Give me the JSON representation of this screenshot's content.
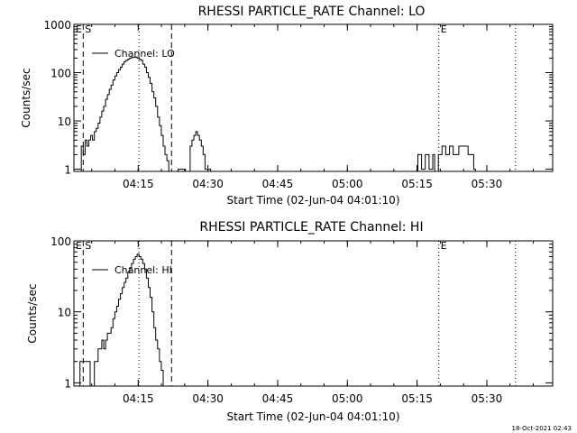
{
  "chart_data": [
    {
      "type": "line",
      "title": "RHESSI PARTICLE_RATE Channel: LO",
      "xlabel": "Start Time (02-Jun-04 04:01:10)",
      "ylabel": "Counts/sec",
      "y_scale": "log",
      "ylim": [
        0.9,
        1000
      ],
      "xlim_minutes": [
        0,
        103
      ],
      "x_ticks": [
        {
          "label": "04:15",
          "minute": 13.83
        },
        {
          "label": "04:30",
          "minute": 28.83
        },
        {
          "label": "04:45",
          "minute": 43.83
        },
        {
          "label": "05:00",
          "minute": 58.83
        },
        {
          "label": "05:15",
          "minute": 73.83
        },
        {
          "label": "05:30",
          "minute": 88.83
        }
      ],
      "y_ticks": [
        {
          "label": "1",
          "value": 1
        },
        {
          "label": "10",
          "value": 10
        },
        {
          "label": "100",
          "value": 100
        },
        {
          "label": "1000",
          "value": 1000
        }
      ],
      "legend": "Channel: LO",
      "markers": [
        {
          "label": "S",
          "minute": 2.0,
          "style": "dashed"
        },
        {
          "label": "",
          "minute": 21.0,
          "style": "dashed"
        },
        {
          "label": "",
          "minute": 14.0,
          "style": "dotted"
        },
        {
          "label": "E",
          "minute": 78.5,
          "style": "dotted"
        },
        {
          "label": "",
          "minute": 95.0,
          "style": "dotted"
        }
      ],
      "corner_label": "E",
      "series": [
        {
          "name": "Channel: LO",
          "segments": [
            {
              "x": [
                1.2,
                1.6,
                2.0,
                2.4,
                2.8,
                3.2,
                3.6,
                4.0,
                4.4,
                4.8,
                5.2,
                5.6,
                6.0,
                6.4,
                6.8,
                7.2,
                7.6,
                8.0,
                8.4,
                8.8,
                9.2,
                9.6,
                10.0,
                10.4,
                10.8,
                11.2,
                11.6,
                12.0,
                12.4,
                12.8,
                13.2,
                13.6,
                14.0,
                14.4,
                14.8,
                15.2,
                15.6,
                16.0,
                16.4,
                16.8,
                17.2,
                17.6,
                18.0,
                18.4,
                18.8,
                19.2,
                19.6,
                20.0,
                20.4
              ],
              "y": [
                0.9,
                3,
                2,
                4,
                3,
                4,
                5,
                4,
                6,
                7,
                9,
                12,
                16,
                20,
                28,
                35,
                45,
                55,
                70,
                85,
                100,
                115,
                130,
                150,
                170,
                180,
                190,
                200,
                205,
                208,
                210,
                200,
                190,
                180,
                150,
                130,
                100,
                80,
                60,
                40,
                30,
                20,
                12,
                8,
                5,
                3,
                2,
                1.5,
                0.9
              ]
            },
            {
              "x": [
                22.0,
                22.4,
                22.8,
                23.2,
                23.6,
                24.0
              ],
              "y": [
                0.9,
                1,
                1,
                1,
                1,
                0.9
              ]
            },
            {
              "x": [
                24.6,
                25.0,
                25.4,
                25.8,
                26.2,
                26.6,
                27.0,
                27.4,
                27.8,
                28.2,
                28.6,
                29.0,
                29.4
              ],
              "y": [
                0.9,
                3,
                4,
                5,
                6,
                5,
                4,
                3,
                2,
                1,
                1,
                1,
                0.9
              ]
            },
            {
              "x": [
                73.6,
                74.0,
                74.4,
                74.8,
                75.2,
                75.6,
                76.0,
                76.4,
                76.8,
                77.2,
                77.6
              ],
              "y": [
                0.9,
                2,
                2,
                1,
                1,
                2,
                2,
                1,
                1,
                2,
                0.9
              ]
            },
            {
              "x": [
                78.0,
                78.4,
                78.8,
                79.2,
                79.6,
                80.0,
                80.4,
                80.8,
                81.2,
                81.6,
                82.0,
                82.4,
                82.8,
                83.2,
                83.6,
                84.0,
                84.4,
                84.8,
                85.2,
                85.6,
                86.0,
                86.4
              ],
              "y": [
                0.9,
                2,
                2,
                3,
                3,
                2,
                2,
                3,
                3,
                2,
                2,
                2,
                3,
                3,
                3,
                3,
                3,
                2,
                2,
                2,
                1,
                0.9
              ]
            }
          ]
        }
      ]
    },
    {
      "type": "line",
      "title": "RHESSI PARTICLE_RATE Channel: HI",
      "xlabel": "Start Time (02-Jun-04 04:01:10)",
      "ylabel": "Counts/sec",
      "y_scale": "log",
      "ylim": [
        0.9,
        100
      ],
      "xlim_minutes": [
        0,
        103
      ],
      "x_ticks": [
        {
          "label": "04:15",
          "minute": 13.83
        },
        {
          "label": "04:30",
          "minute": 28.83
        },
        {
          "label": "04:45",
          "minute": 43.83
        },
        {
          "label": "05:00",
          "minute": 58.83
        },
        {
          "label": "05:15",
          "minute": 73.83
        },
        {
          "label": "05:30",
          "minute": 88.83
        }
      ],
      "y_ticks": [
        {
          "label": "1",
          "value": 1
        },
        {
          "label": "10",
          "value": 10
        },
        {
          "label": "100",
          "value": 100
        }
      ],
      "legend": "Channel: HI",
      "markers": [
        {
          "label": "S",
          "minute": 2.0,
          "style": "dashed"
        },
        {
          "label": "",
          "minute": 21.0,
          "style": "dashed"
        },
        {
          "label": "",
          "minute": 14.0,
          "style": "dotted"
        },
        {
          "label": "E",
          "minute": 78.5,
          "style": "dotted"
        },
        {
          "label": "",
          "minute": 95.0,
          "style": "dotted"
        }
      ],
      "corner_label": "E",
      "series": [
        {
          "name": "Channel: HI",
          "segments": [
            {
              "x": [
                1.0,
                1.3,
                3.2,
                3.5
              ],
              "y": [
                0.9,
                2,
                2,
                0.9
              ]
            },
            {
              "x": [
                4.0,
                4.4,
                4.8,
                5.2,
                5.6,
                6.0,
                6.4,
                6.8,
                7.2,
                7.6,
                8.0,
                8.4,
                8.8,
                9.2,
                9.6,
                10.0,
                10.4,
                10.8,
                11.2,
                11.6,
                12.0,
                12.4,
                12.8,
                13.2,
                13.6,
                14.0,
                14.4,
                14.8,
                15.2,
                15.6,
                16.0,
                16.4,
                16.8,
                17.2,
                17.6,
                18.0,
                18.4,
                18.8,
                19.2
              ],
              "y": [
                0.9,
                2,
                2,
                3,
                3,
                4,
                3,
                4,
                5,
                5,
                6,
                8,
                10,
                12,
                15,
                18,
                22,
                26,
                30,
                36,
                42,
                48,
                55,
                60,
                65,
                60,
                55,
                48,
                40,
                30,
                22,
                16,
                10,
                6,
                4,
                3,
                2,
                1.5,
                0.9
              ]
            }
          ]
        }
      ]
    }
  ],
  "footer": "18-Oct-2021 02:43"
}
